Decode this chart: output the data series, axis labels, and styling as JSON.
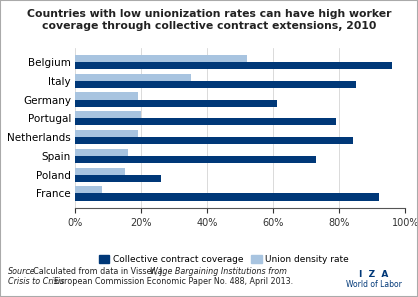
{
  "title": "Countries with low unionization rates can have high worker\ncoverage through collective contract extensions, 2010",
  "countries": [
    "France",
    "Poland",
    "Spain",
    "Netherlands",
    "Portugal",
    "Germany",
    "Italy",
    "Belgium"
  ],
  "collective_coverage": [
    92,
    26,
    73,
    84,
    79,
    61,
    85,
    96
  ],
  "union_density": [
    8,
    15,
    16,
    19,
    20,
    19,
    35,
    52
  ],
  "color_collective": "#003878",
  "color_union": "#a8c4e0",
  "legend_labels": [
    "Collective contract coverage",
    "Union density rate"
  ],
  "bg_color": "#ffffff",
  "border_color": "#a0a0a0",
  "iza_text": "I  Z  A",
  "wol_text": "World of Labor",
  "iza_color": "#003878"
}
